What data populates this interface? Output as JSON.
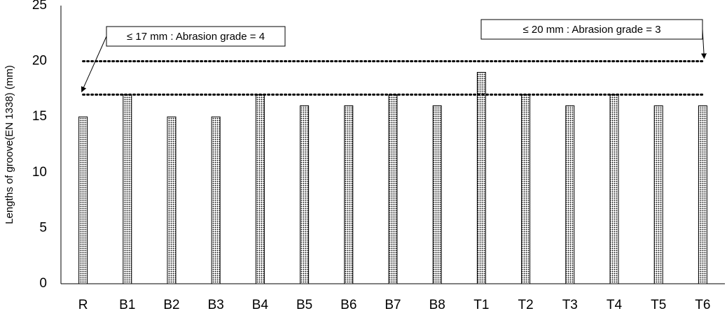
{
  "chart_data": {
    "type": "bar",
    "y_label": "Lengths of groove(EN 1338) (mm)",
    "categories": [
      "R",
      "B1",
      "B2",
      "B3",
      "B4",
      "B5",
      "B6",
      "B7",
      "B8",
      "T1",
      "T2",
      "T3",
      "T4",
      "T5",
      "T6"
    ],
    "values": [
      15,
      17,
      15,
      15,
      17,
      16,
      16,
      17,
      16,
      19,
      17,
      16,
      17,
      16,
      16
    ],
    "color": "#000000",
    "ylim": [
      0,
      25
    ],
    "yticks": [
      0,
      5,
      10,
      15,
      20,
      25
    ],
    "grid": false,
    "reference_lines": [
      {
        "value": 17,
        "label": "≤ 17 mm : Abrasion grade = 4"
      },
      {
        "value": 20,
        "label": "≤ 20 mm : Abrasion grade = 3"
      }
    ]
  }
}
